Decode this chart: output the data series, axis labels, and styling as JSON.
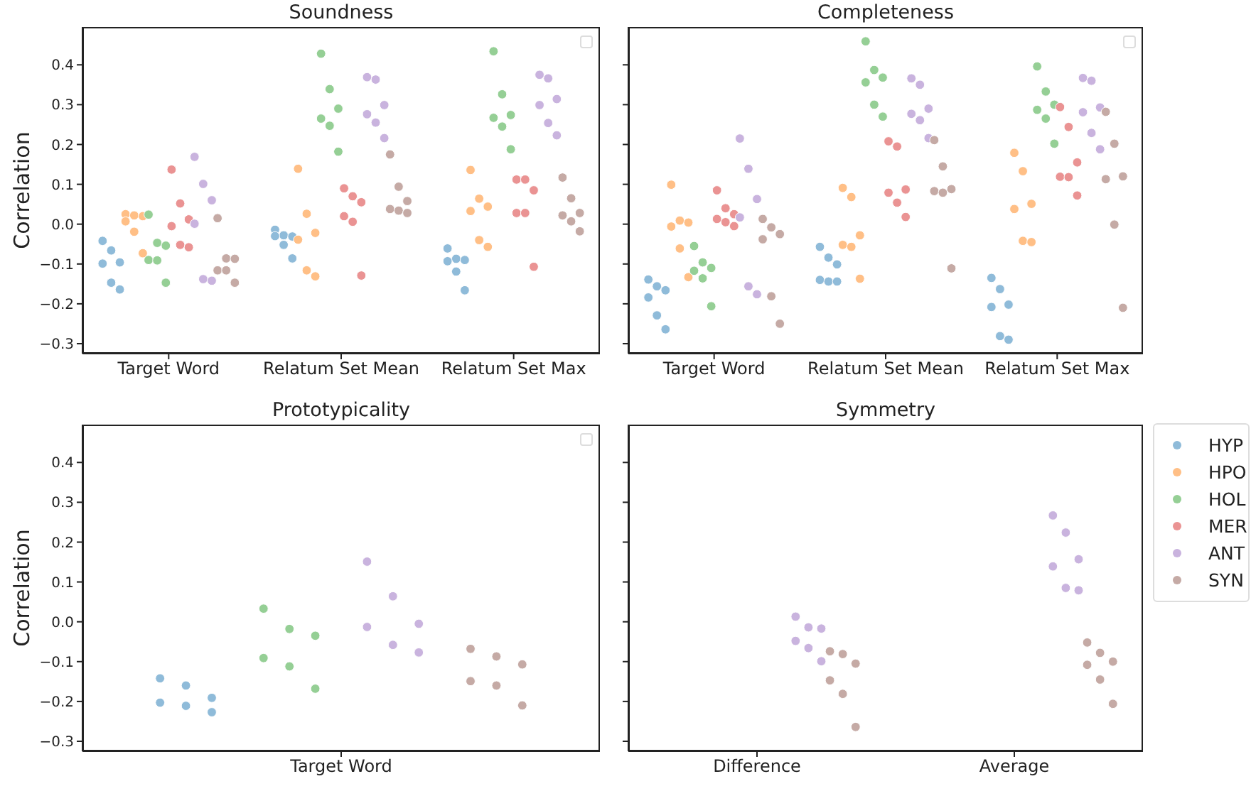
{
  "chart_data": [
    {
      "type": "scatter",
      "title": "Soundness",
      "ylabel": "Correlation",
      "marker": "circle",
      "tick_labels": true,
      "categories": [
        "Target Word",
        "Relatum Set Mean",
        "Relatum Set Max"
      ],
      "ylim": [
        -0.325,
        0.495
      ],
      "yticks": [
        {
          "value": -0.3,
          "label": "−0.3"
        },
        {
          "value": -0.2,
          "label": "−0.2"
        },
        {
          "value": -0.1,
          "label": "−0.1"
        },
        {
          "value": 0,
          "label": "0.0"
        },
        {
          "value": 0.1,
          "label": "0.1"
        },
        {
          "value": 0.2,
          "label": "0.2"
        },
        {
          "value": 0.3,
          "label": "0.3"
        },
        {
          "value": 0.4,
          "label": "0.4"
        }
      ],
      "series": [
        {
          "color": "#8fbbd9",
          "x": [
            "Target Word",
            "Target Word",
            "Target Word",
            "Target Word",
            "Target Word",
            "Target Word",
            "Relatum Set Mean",
            "Relatum Set Mean",
            "Relatum Set Mean",
            "Relatum Set Mean",
            "Relatum Set Mean",
            "Relatum Set Mean",
            "Relatum Set Max",
            "Relatum Set Max",
            "Relatum Set Max",
            "Relatum Set Max",
            "Relatum Set Max",
            "Relatum Set Max"
          ],
          "values": [
            -0.042,
            -0.066,
            -0.096,
            -0.099,
            -0.147,
            -0.164,
            -0.014,
            -0.028,
            -0.031,
            -0.03,
            -0.052,
            -0.086,
            -0.061,
            -0.087,
            -0.09,
            -0.093,
            -0.119,
            -0.166
          ]
        },
        {
          "color": "#ffbf86",
          "x": [
            "Target Word",
            "Target Word",
            "Target Word",
            "Target Word",
            "Target Word",
            "Target Word",
            "Relatum Set Mean",
            "Relatum Set Mean",
            "Relatum Set Mean",
            "Relatum Set Mean",
            "Relatum Set Mean",
            "Relatum Set Mean",
            "Relatum Set Max",
            "Relatum Set Max",
            "Relatum Set Max",
            "Relatum Set Max",
            "Relatum Set Max",
            "Relatum Set Max"
          ],
          "values": [
            0.025,
            0.022,
            0.02,
            0.007,
            -0.019,
            -0.073,
            0.139,
            0.026,
            -0.022,
            -0.039,
            -0.116,
            -0.131,
            0.136,
            0.064,
            0.044,
            0.033,
            -0.04,
            -0.057
          ]
        },
        {
          "color": "#95cf95",
          "x": [
            "Target Word",
            "Target Word",
            "Target Word",
            "Target Word",
            "Target Word",
            "Target Word",
            "Relatum Set Mean",
            "Relatum Set Mean",
            "Relatum Set Mean",
            "Relatum Set Mean",
            "Relatum Set Mean",
            "Relatum Set Mean",
            "Relatum Set Max",
            "Relatum Set Max",
            "Relatum Set Max",
            "Relatum Set Max",
            "Relatum Set Max",
            "Relatum Set Max"
          ],
          "values": [
            0.024,
            -0.047,
            -0.054,
            -0.09,
            -0.091,
            -0.147,
            0.428,
            0.339,
            0.29,
            0.265,
            0.247,
            0.182,
            0.434,
            0.326,
            0.274,
            0.267,
            0.245,
            0.188
          ]
        },
        {
          "color": "#ea9393",
          "x": [
            "Target Word",
            "Target Word",
            "Target Word",
            "Target Word",
            "Target Word",
            "Target Word",
            "Relatum Set Mean",
            "Relatum Set Mean",
            "Relatum Set Mean",
            "Relatum Set Mean",
            "Relatum Set Mean",
            "Relatum Set Mean",
            "Relatum Set Max",
            "Relatum Set Max",
            "Relatum Set Max",
            "Relatum Set Max",
            "Relatum Set Max",
            "Relatum Set Max"
          ],
          "values": [
            0.137,
            0.052,
            0.012,
            -0.005,
            -0.052,
            -0.058,
            0.09,
            0.07,
            0.055,
            0.02,
            0.006,
            -0.129,
            0.112,
            0.112,
            0.085,
            0.028,
            0.028,
            -0.107
          ]
        },
        {
          "color": "#c9b3de",
          "x": [
            "Target Word",
            "Target Word",
            "Target Word",
            "Target Word",
            "Target Word",
            "Target Word",
            "Relatum Set Mean",
            "Relatum Set Mean",
            "Relatum Set Mean",
            "Relatum Set Mean",
            "Relatum Set Mean",
            "Relatum Set Mean",
            "Relatum Set Max",
            "Relatum Set Max",
            "Relatum Set Max",
            "Relatum Set Max",
            "Relatum Set Max",
            "Relatum Set Max"
          ],
          "values": [
            0.169,
            0.101,
            0.06,
            0.001,
            -0.138,
            -0.142,
            0.369,
            0.363,
            0.299,
            0.276,
            0.255,
            0.216,
            0.375,
            0.366,
            0.314,
            0.299,
            0.254,
            0.223
          ]
        },
        {
          "color": "#c5aaa5",
          "x": [
            "Target Word",
            "Target Word",
            "Target Word",
            "Target Word",
            "Target Word",
            "Target Word",
            "Relatum Set Mean",
            "Relatum Set Mean",
            "Relatum Set Mean",
            "Relatum Set Mean",
            "Relatum Set Mean",
            "Relatum Set Mean",
            "Relatum Set Max",
            "Relatum Set Max",
            "Relatum Set Max",
            "Relatum Set Max",
            "Relatum Set Max",
            "Relatum Set Max"
          ],
          "values": [
            0.015,
            -0.086,
            -0.087,
            -0.116,
            -0.116,
            -0.147,
            0.175,
            0.094,
            0.058,
            0.038,
            0.034,
            0.028,
            0.117,
            0.065,
            0.028,
            0.022,
            0.007,
            -0.018
          ]
        }
      ]
    },
    {
      "type": "scatter",
      "title": "Completeness",
      "marker": "circle",
      "tick_labels": "x",
      "categories": [
        "Target Word",
        "Relatum Set Mean",
        "Relatum Set Max"
      ],
      "ylim": [
        -0.325,
        0.495
      ],
      "yticks": [
        {
          "value": -0.3,
          "label": null
        },
        {
          "value": -0.2,
          "label": null
        },
        {
          "value": -0.1,
          "label": null
        },
        {
          "value": 0,
          "label": null
        },
        {
          "value": 0.1,
          "label": null
        },
        {
          "value": 0.2,
          "label": null
        },
        {
          "value": 0.3,
          "label": null
        },
        {
          "value": 0.4,
          "label": null
        }
      ],
      "series": [
        {
          "color": "#8fbbd9",
          "x": [
            "Target Word",
            "Target Word",
            "Target Word",
            "Target Word",
            "Target Word",
            "Target Word",
            "Relatum Set Mean",
            "Relatum Set Mean",
            "Relatum Set Mean",
            "Relatum Set Mean",
            "Relatum Set Mean",
            "Relatum Set Mean",
            "Relatum Set Max",
            "Relatum Set Max",
            "Relatum Set Max",
            "Relatum Set Max",
            "Relatum Set Max",
            "Relatum Set Max"
          ],
          "values": [
            -0.139,
            -0.156,
            -0.166,
            -0.184,
            -0.229,
            -0.264,
            -0.057,
            -0.084,
            -0.101,
            -0.14,
            -0.144,
            -0.144,
            -0.135,
            -0.163,
            -0.202,
            -0.208,
            -0.281,
            -0.29
          ]
        },
        {
          "color": "#ffbf86",
          "x": [
            "Target Word",
            "Target Word",
            "Target Word",
            "Target Word",
            "Target Word",
            "Target Word",
            "Relatum Set Mean",
            "Relatum Set Mean",
            "Relatum Set Mean",
            "Relatum Set Mean",
            "Relatum Set Mean",
            "Relatum Set Mean",
            "Relatum Set Max",
            "Relatum Set Max",
            "Relatum Set Max",
            "Relatum Set Max",
            "Relatum Set Max",
            "Relatum Set Max"
          ],
          "values": [
            0.099,
            0.009,
            0.004,
            -0.006,
            -0.061,
            -0.133,
            0.091,
            0.068,
            -0.028,
            -0.052,
            -0.057,
            -0.137,
            0.179,
            0.133,
            0.051,
            0.038,
            -0.042,
            -0.045
          ]
        },
        {
          "color": "#95cf95",
          "x": [
            "Target Word",
            "Target Word",
            "Target Word",
            "Target Word",
            "Target Word",
            "Target Word",
            "Relatum Set Mean",
            "Relatum Set Mean",
            "Relatum Set Mean",
            "Relatum Set Mean",
            "Relatum Set Mean",
            "Relatum Set Mean",
            "Relatum Set Max",
            "Relatum Set Max",
            "Relatum Set Max",
            "Relatum Set Max",
            "Relatum Set Max",
            "Relatum Set Max"
          ],
          "values": [
            -0.055,
            -0.096,
            -0.11,
            -0.117,
            -0.136,
            -0.206,
            0.459,
            0.387,
            0.368,
            0.356,
            0.3,
            0.27,
            0.396,
            0.333,
            0.3,
            0.287,
            0.265,
            0.202
          ]
        },
        {
          "color": "#ea9393",
          "x": [
            "Target Word",
            "Target Word",
            "Target Word",
            "Target Word",
            "Target Word",
            "Target Word",
            "Relatum Set Mean",
            "Relatum Set Mean",
            "Relatum Set Mean",
            "Relatum Set Mean",
            "Relatum Set Mean",
            "Relatum Set Mean",
            "Relatum Set Max",
            "Relatum Set Max",
            "Relatum Set Max",
            "Relatum Set Max",
            "Relatum Set Max",
            "Relatum Set Max"
          ],
          "values": [
            0.085,
            0.04,
            0.025,
            0.013,
            0.005,
            -0.005,
            0.208,
            0.195,
            0.087,
            0.079,
            0.054,
            0.018,
            0.294,
            0.244,
            0.155,
            0.119,
            0.118,
            0.072
          ]
        },
        {
          "color": "#c9b3de",
          "x": [
            "Target Word",
            "Target Word",
            "Target Word",
            "Target Word",
            "Target Word",
            "Target Word",
            "Relatum Set Mean",
            "Relatum Set Mean",
            "Relatum Set Mean",
            "Relatum Set Mean",
            "Relatum Set Mean",
            "Relatum Set Mean",
            "Relatum Set Max",
            "Relatum Set Max",
            "Relatum Set Max",
            "Relatum Set Max",
            "Relatum Set Max",
            "Relatum Set Max"
          ],
          "values": [
            0.215,
            0.139,
            0.063,
            0.017,
            -0.156,
            -0.176,
            0.366,
            0.35,
            0.29,
            0.277,
            0.261,
            0.216,
            0.367,
            0.36,
            0.293,
            0.281,
            0.229,
            0.188
          ]
        },
        {
          "color": "#c5aaa5",
          "x": [
            "Target Word",
            "Target Word",
            "Target Word",
            "Target Word",
            "Target Word",
            "Target Word",
            "Relatum Set Mean",
            "Relatum Set Mean",
            "Relatum Set Mean",
            "Relatum Set Mean",
            "Relatum Set Mean",
            "Relatum Set Mean",
            "Relatum Set Max",
            "Relatum Set Max",
            "Relatum Set Max",
            "Relatum Set Max",
            "Relatum Set Max",
            "Relatum Set Max"
          ],
          "values": [
            0.013,
            -0.008,
            -0.025,
            -0.038,
            -0.181,
            -0.25,
            0.211,
            0.145,
            0.088,
            0.083,
            0.079,
            -0.111,
            0.282,
            0.202,
            0.12,
            0.113,
            -0.001,
            -0.21
          ]
        }
      ]
    },
    {
      "type": "scatter",
      "title": "Prototypicality",
      "ylabel": "Correlation",
      "marker": "circle",
      "tick_labels": true,
      "categories": [
        "Target Word"
      ],
      "ylim": [
        -0.325,
        0.495
      ],
      "yticks": [
        {
          "value": -0.3,
          "label": "−0.3"
        },
        {
          "value": -0.2,
          "label": "−0.2"
        },
        {
          "value": -0.1,
          "label": "−0.1"
        },
        {
          "value": 0,
          "label": "0.0"
        },
        {
          "value": 0.1,
          "label": "0.1"
        },
        {
          "value": 0.2,
          "label": "0.2"
        },
        {
          "value": 0.3,
          "label": "0.3"
        },
        {
          "value": 0.4,
          "label": "0.4"
        }
      ],
      "series": [
        {
          "color": "#8fbbd9",
          "x": [
            "Target Word",
            "Target Word",
            "Target Word",
            "Target Word",
            "Target Word",
            "Target Word"
          ],
          "values": [
            -0.142,
            -0.16,
            -0.191,
            -0.203,
            -0.211,
            -0.227
          ]
        },
        {
          "color": "#95cf95",
          "x": [
            "Target Word",
            "Target Word",
            "Target Word",
            "Target Word",
            "Target Word",
            "Target Word"
          ],
          "values": [
            0.033,
            -0.018,
            -0.035,
            -0.091,
            -0.112,
            -0.168
          ]
        },
        {
          "color": "#c9b3de",
          "x": [
            "Target Word",
            "Target Word",
            "Target Word",
            "Target Word",
            "Target Word",
            "Target Word"
          ],
          "values": [
            0.151,
            0.064,
            -0.005,
            -0.013,
            -0.058,
            -0.077
          ]
        },
        {
          "color": "#c5aaa5",
          "x": [
            "Target Word",
            "Target Word",
            "Target Word",
            "Target Word",
            "Target Word",
            "Target Word"
          ],
          "values": [
            -0.068,
            -0.087,
            -0.107,
            -0.149,
            -0.16,
            -0.21
          ]
        }
      ]
    },
    {
      "type": "scatter",
      "title": "Symmetry",
      "marker": "circle",
      "tick_labels": "x",
      "legend": "right",
      "categories": [
        "Difference",
        "Average"
      ],
      "ylim": [
        -0.325,
        0.495
      ],
      "yticks": [
        {
          "value": -0.3,
          "label": null
        },
        {
          "value": -0.2,
          "label": null
        },
        {
          "value": -0.1,
          "label": null
        },
        {
          "value": 0,
          "label": null
        },
        {
          "value": 0.1,
          "label": null
        },
        {
          "value": 0.2,
          "label": null
        },
        {
          "value": 0.3,
          "label": null
        },
        {
          "value": 0.4,
          "label": null
        }
      ],
      "series": [
        {
          "name": "HYP",
          "color": "#8fbbd9",
          "x": [
            "Difference",
            "Average"
          ],
          "values": [
            null,
            null
          ]
        },
        {
          "name": "HPO",
          "color": "#ffbf86",
          "x": [
            "Difference",
            "Average"
          ],
          "values": [
            null,
            null
          ]
        },
        {
          "name": "HOL",
          "color": "#95cf95",
          "x": [
            "Difference",
            "Average"
          ],
          "values": [
            null,
            null
          ]
        },
        {
          "name": "MER",
          "color": "#ea9393",
          "x": [
            "Difference",
            "Average"
          ],
          "values": [
            null,
            null
          ]
        },
        {
          "name": "ANT",
          "color": "#c9b3de",
          "x": [
            "Difference",
            "Difference",
            "Difference",
            "Difference",
            "Difference",
            "Difference",
            "Average",
            "Average",
            "Average",
            "Average",
            "Average",
            "Average"
          ],
          "values": [
            0.013,
            -0.014,
            -0.017,
            -0.048,
            -0.066,
            -0.099,
            0.267,
            0.224,
            0.157,
            0.139,
            0.085,
            0.079
          ]
        },
        {
          "name": "SYN",
          "color": "#c5aaa5",
          "x": [
            "Difference",
            "Difference",
            "Difference",
            "Difference",
            "Difference",
            "Difference",
            "Average",
            "Average",
            "Average",
            "Average",
            "Average",
            "Average"
          ],
          "values": [
            -0.074,
            -0.081,
            -0.105,
            -0.147,
            -0.181,
            -0.264,
            -0.052,
            -0.078,
            -0.1,
            -0.108,
            -0.145,
            -0.206
          ]
        }
      ]
    }
  ]
}
